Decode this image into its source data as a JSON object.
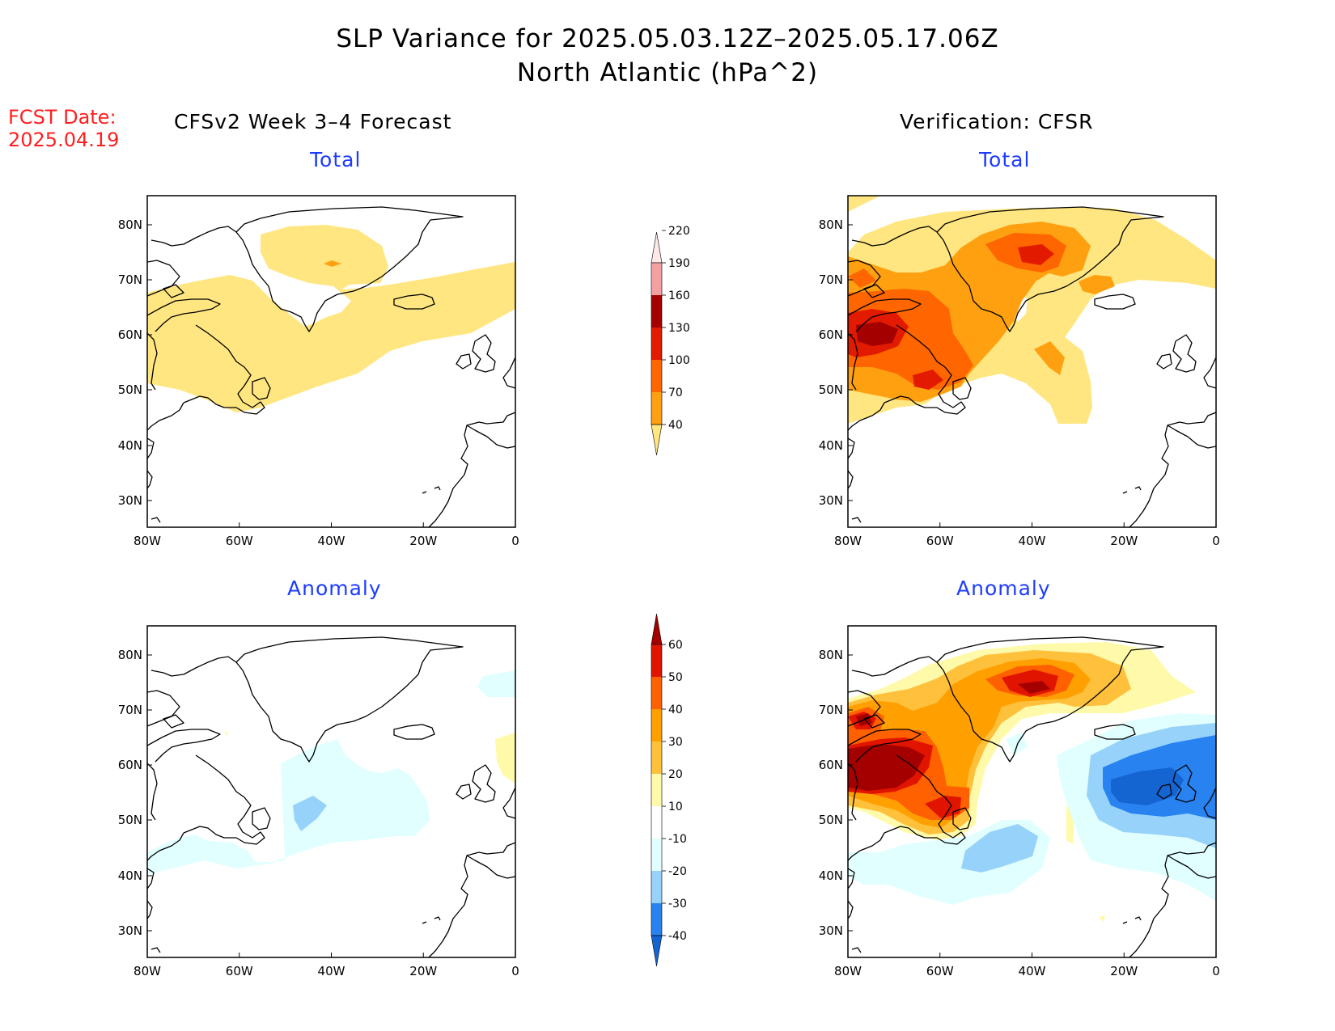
{
  "title": {
    "line1": "SLP Variance for 2025.05.03.12Z–2025.05.17.06Z",
    "line2": "North Atlantic (hPa^2)"
  },
  "fcst": {
    "label": "FCST Date:",
    "date": "2025.04.19"
  },
  "columns": {
    "left": "CFSv2 Week 3–4 Forecast",
    "right": "Verification: CFSR"
  },
  "panel_titles": {
    "fcst_total": "Total",
    "verif_total": "Total",
    "fcst_anom": "Anomaly",
    "verif_anom": "Anomaly"
  },
  "axes": {
    "lon_labels": [
      "80W",
      "60W",
      "40W",
      "20W",
      "0"
    ],
    "lat_labels": [
      "80N",
      "70N",
      "60N",
      "50N",
      "40N",
      "30N"
    ]
  },
  "colorbars": {
    "total": {
      "levels": [
        "40",
        "70",
        "100",
        "130",
        "160",
        "190",
        "220"
      ],
      "colors": [
        "#ffe680",
        "#ffa010",
        "#ff6600",
        "#e11a00",
        "#a50000",
        "#f5a0a0",
        "#ffe8e8"
      ]
    },
    "anomaly": {
      "levels": [
        "-40",
        "-30",
        "-20",
        "-10",
        "10",
        "20",
        "30",
        "40",
        "50",
        "60"
      ],
      "colors": [
        "#1464d2",
        "#2882f0",
        "#96d2fa",
        "#e1ffff",
        "#ffffff",
        "#fffaaa",
        "#ffc03c",
        "#ffa000",
        "#ff6000",
        "#e11400",
        "#a50000"
      ]
    }
  }
}
